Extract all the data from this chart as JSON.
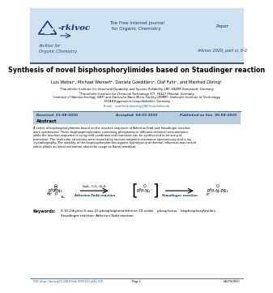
{
  "header_bg": "#cfe0ef",
  "blue_dark": "#1a3a7a",
  "blue_mid": "#2255aa",
  "accent_color": "#b8cfe0",
  "white": "#ffffff",
  "black": "#000000",
  "journal_title": "The Free Internet Journal\nfor Organic Chemistry",
  "paper_label": "Paper",
  "archive_label": "Archive for\nOrganic Chemistry",
  "citation": "Arkivoc 2020, part vi, 0-0",
  "title": "Synthesis of novel bisphosphorylimides based on Staudinger reaction",
  "authors": "Luis Weberᵃ, Michael Weinertᵇ, Daniela Goeddlersᵃ, Olaf Fuhrᶜ, and Manfred Döringᵃ",
  "affil1": "ᵃFraunhofer Institute for Structural Durability and System Reliability LBF, 64289 Darmstadt, Germany",
  "affil2": "ᵇFraunhofer Institute for Chemical Technology ICT, 76327 Pfinztal, Germany",
  "affil3": "ᶜInstitute of Nanotechnology (INT) and Karlsruhe Nano Micro Facility (KNMF), Karlsruhe Institute of Technology,",
  "affil4": "76344 Eggenstein-Leopoldshafen, Germany",
  "email": "manfred.doering@lbf.fraunhofer.de",
  "received_label": "Received",
  "received_date": "01-08-2020",
  "accepted_label": "Accepted",
  "accepted_date": "04-23-2020",
  "published_label": "Published on line",
  "published_date": "05-04-2020",
  "abstract_label": "Abstract",
  "abstract_lines": [
    "A series of bisphosphorylimides based on the reaction sequence of Atherton-Todd and Staudinger reaction",
    "were synthesized. These bisphosphorylimides containing phosphorus in different chemical environments,",
    "while the reaction sequence is using mild conditions and moreover can be synthesized in an one-pot",
    "procedure. The molecular structures were revealed by nuclear magnetic resonance spectroscopy and x-ray",
    "crystallography. The stability of the bisphosphorylimides against hydrolysis and thermal influences was tested",
    "which allows an initial estimation about the usage as flame retardant."
  ],
  "reaction_label1": "Atherton-Todd reaction",
  "reaction_reagents1": "NaH₂, CCl₂, Et₃N",
  "reaction_label2": "Staudinger reaction",
  "keywords_label": "Keywords:",
  "keywords_text": "9,10-Dihydro-9-oxa-10-phosphaphenanthrene-10-oxide,   phosphorus,   bisphosphorylimides,\nStaudinger reaction, Atherton-Todd reaction",
  "doi_text": "DOI: https://doi.org/10.24820/ark.5550190.p011.330",
  "page_text": "Page 1",
  "author_text": "©AUTHOR(S)"
}
